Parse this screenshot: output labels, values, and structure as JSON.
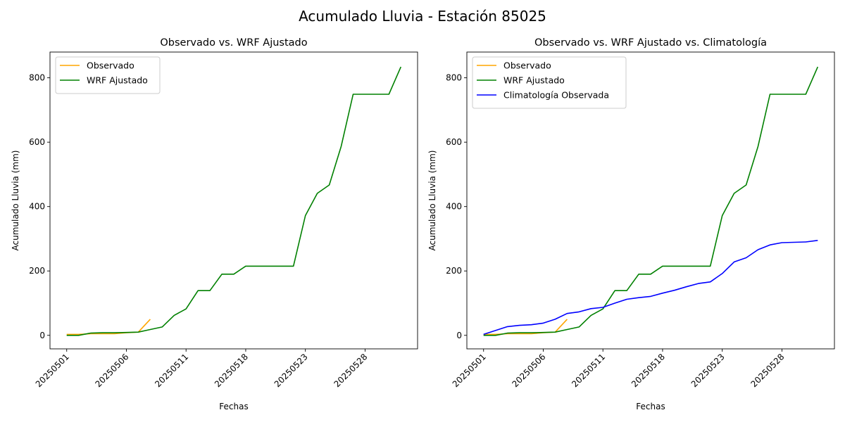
{
  "figure": {
    "title": "Acumulado Lluvia - Estación 85025"
  },
  "chart_data": [
    {
      "type": "line",
      "title": "Observado vs. WRF Ajustado",
      "xlabel": "Fechas",
      "ylabel": "Acumulado Lluvia (mm)",
      "xtick_labels": [
        "20250501",
        "20250506",
        "20250511",
        "20250518",
        "20250523",
        "20250528"
      ],
      "xtick_index": [
        0,
        5,
        10,
        15,
        20,
        25
      ],
      "yticks": [
        0,
        200,
        400,
        600,
        800
      ],
      "ylim": [
        -42,
        880
      ],
      "x_count": 29,
      "legend_position": "upper-left",
      "series": [
        {
          "name": "Observado",
          "color": "#ffa500",
          "values": [
            3,
            3,
            5,
            5,
            5,
            8,
            10,
            50
          ]
        },
        {
          "name": "WRF Ajustado",
          "color": "#008000",
          "values": [
            0,
            0,
            7,
            8,
            8,
            9,
            10,
            18,
            26,
            62,
            82,
            139,
            139,
            190,
            190,
            215,
            215,
            215,
            215,
            215,
            372,
            441,
            467,
            587,
            749,
            749,
            749,
            749,
            834
          ]
        }
      ]
    },
    {
      "type": "line",
      "title": "Observado vs. WRF Ajustado vs. Climatología",
      "xlabel": "Fechas",
      "ylabel": "Acumulado Lluvia (mm)",
      "xtick_labels": [
        "20250501",
        "20250506",
        "20250511",
        "20250518",
        "20250523",
        "20250528"
      ],
      "xtick_index": [
        0,
        5,
        10,
        15,
        20,
        25
      ],
      "yticks": [
        0,
        200,
        400,
        600,
        800
      ],
      "ylim": [
        -42,
        880
      ],
      "x_count": 29,
      "legend_position": "upper-left",
      "series": [
        {
          "name": "Observado",
          "color": "#ffa500",
          "values": [
            3,
            3,
            5,
            5,
            5,
            8,
            10,
            50
          ]
        },
        {
          "name": "WRF Ajustado",
          "color": "#008000",
          "values": [
            0,
            0,
            7,
            8,
            8,
            9,
            10,
            18,
            26,
            62,
            82,
            139,
            139,
            190,
            190,
            215,
            215,
            215,
            215,
            215,
            372,
            441,
            467,
            587,
            749,
            749,
            749,
            749,
            834
          ]
        },
        {
          "name": "Climatología Observada",
          "color": "#0000ff",
          "values": [
            3,
            15,
            27,
            31,
            33,
            38,
            50,
            68,
            73,
            83,
            87,
            100,
            112,
            117,
            121,
            131,
            140,
            151,
            161,
            166,
            192,
            228,
            241,
            266,
            281,
            288,
            289,
            290,
            295
          ]
        }
      ]
    }
  ]
}
